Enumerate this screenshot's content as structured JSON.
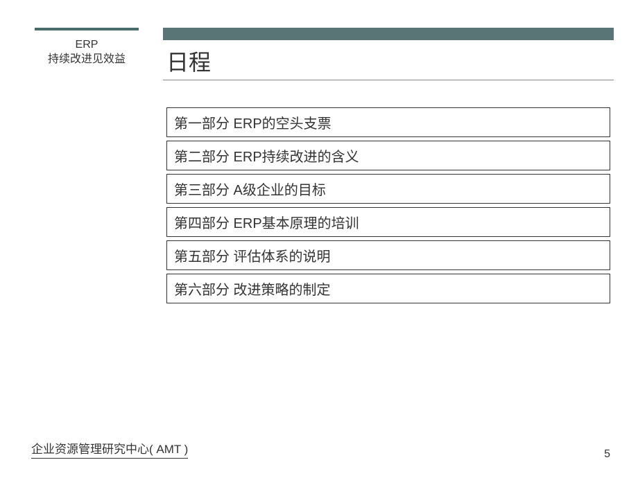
{
  "sidebar": {
    "line1": "ERP",
    "line2": "持续改进见效益"
  },
  "title": "日程",
  "agenda": {
    "items": [
      "第一部分  ERP的空头支票",
      "第二部分  ERP持续改进的含义",
      "第三部分  A级企业的目标",
      "第四部分  ERP基本原理的培训",
      "第五部分  评估体系的说明",
      "第六部分  改进策略的制定"
    ]
  },
  "footer": {
    "organization": "企业资源管理研究中心( AMT )",
    "pageNumber": "5"
  },
  "colors": {
    "bandColor": "#5a7575",
    "topBarColor": "#4a6b6b",
    "textColor": "#333333",
    "borderColor": "#333333",
    "background": "#ffffff"
  }
}
